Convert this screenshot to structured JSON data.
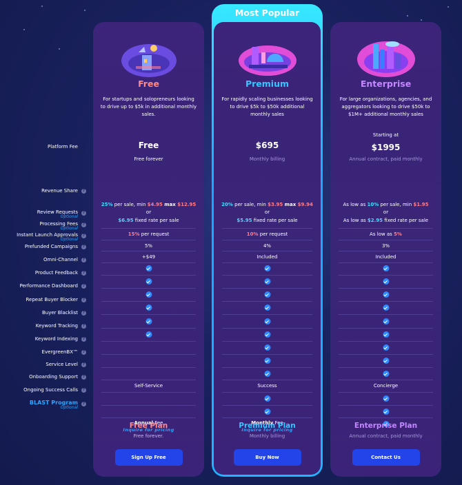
{
  "colors": {
    "free_name": "#ff8a8a",
    "premium_name": "#35c6ff",
    "enterprise_name": "#c387ff",
    "cta": "#2244e8",
    "check": "#2e8bff"
  },
  "premium_badge": "Most Popular",
  "labels": {
    "platform_fee": "Platform Fee",
    "revenue_share": "Revenue Share",
    "review_requests": "Review Requests",
    "optional": "Optional",
    "processing_fees": "Processing Fees",
    "instant_launch": "Instant Launch Approvals",
    "prefunded": "Prefunded Campaigns",
    "omni": "Omni-Channel",
    "product_feedback": "Product Feedback",
    "performance": "Performance Dashboard",
    "repeat_blocker": "Repeat Buyer Blocker",
    "blacklist": "Buyer Blacklist",
    "keyword_tracking": "Keyword Tracking",
    "keyword_indexing": "Keyword Indexing",
    "evergreen": "EvergreenBX™",
    "service_level": "Service Level",
    "onboarding": "Onboarding Support",
    "success_calls": "Ongoing Success Calls",
    "blast": "BLAST Program",
    "qm": "?"
  },
  "plans": {
    "free": {
      "name": "Free",
      "desc": "For startups and solopreneurs looking to drive up to $5k in additional monthly sales.",
      "fee": "Free",
      "fee_sub": "Free forever",
      "rev_a1": "25%",
      "rev_a2": " per sale, min ",
      "rev_a3": "$4.95",
      "rev_a4": " max ",
      "rev_a5": "$12.95",
      "rev_or": "or",
      "rev_b1": "$6.95",
      "rev_b2": " fixed rate per sale",
      "review_1": "15%",
      "review_2": " per request",
      "processing": "5%",
      "instant": "+$49",
      "service": "Self-Service",
      "blast_1": "Annual",
      "blast_2": " Fee",
      "blast_inq": "Inquire for pricing",
      "foot_name": "Free Plan",
      "foot_sub": "Free forever.",
      "cta": "Sign Up Free"
    },
    "premium": {
      "name": "Premium",
      "desc": "For rapidly scaling businesses looking to drive $5k to $50k additional monthly sales",
      "fee": "$695",
      "fee_sub": "Monthly billing",
      "rev_a1": "20%",
      "rev_a2": " per sale, min ",
      "rev_a3": "$3.95",
      "rev_a4": " max ",
      "rev_a5": "$9.94",
      "rev_or": "or",
      "rev_b1": "$5.95",
      "rev_b2": " fixed rate per sale",
      "review_1": "10%",
      "review_2": " per request",
      "processing": "4%",
      "instant": "Included",
      "service": "Success",
      "blast_1": "Monthly",
      "blast_2": " Fee",
      "blast_inq": "Inquire for pricing",
      "foot_name": "Premium Plan",
      "foot_sub": "Monthly billing",
      "cta": "Buy Now"
    },
    "enterprise": {
      "name": "Enterprise",
      "desc": "For large organizations, agencies, and aggregators looking to drive $50k to $1M+ additional monthly sales",
      "fee_pre": "Starting at",
      "fee": "$1995",
      "fee_sub": "Annual contract, paid monthly",
      "rev_a0": "As low as ",
      "rev_a1": "10%",
      "rev_a2": " per sale, min ",
      "rev_a3": "$1.95",
      "rev_or": "or",
      "rev_b0": "As low as ",
      "rev_b1": "$2.95",
      "rev_b2": " fixed rate per sale",
      "review_0": "As low as ",
      "review_1": "5%",
      "processing": "3%",
      "instant": "Included",
      "service": "Concierge",
      "foot_name": "Enterprise Plan",
      "foot_sub": "Annual contract, paid monthly",
      "cta": "Contact Us"
    }
  }
}
